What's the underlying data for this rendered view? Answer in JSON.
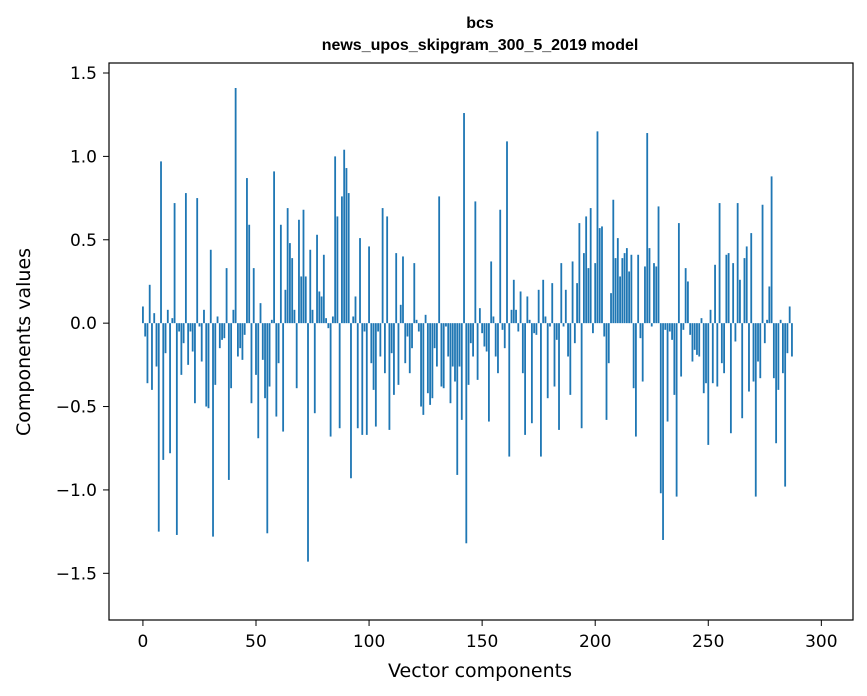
{
  "chart_data": {
    "type": "bar",
    "title": "bcs",
    "subtitle": "news_upos_skipgram_300_5_2019 model",
    "xlabel": "Vector components",
    "ylabel": "Components values",
    "xlim": [
      -15,
      314
    ],
    "ylim": [
      -1.78,
      1.56
    ],
    "xticks": [
      0,
      50,
      100,
      150,
      200,
      250,
      300
    ],
    "xtick_labels": [
      "0",
      "50",
      "100",
      "150",
      "200",
      "250",
      "300"
    ],
    "yticks": [
      -1.5,
      -1.0,
      -0.5,
      0.0,
      0.5,
      1.0,
      1.5
    ],
    "ytick_labels": [
      "−1.5",
      "−1.0",
      "−0.5",
      "0.0",
      "0.5",
      "1.0",
      "1.5"
    ],
    "grid": false,
    "bar_color": "#1f77b4",
    "values": [
      0.1,
      -0.08,
      -0.36,
      0.23,
      -0.4,
      0.06,
      -0.26,
      -1.25,
      0.97,
      -0.82,
      -0.18,
      0.08,
      -0.78,
      0.03,
      0.72,
      -1.27,
      -0.05,
      -0.31,
      -0.12,
      0.78,
      -0.25,
      -0.05,
      -0.17,
      -0.48,
      0.75,
      -0.02,
      -0.23,
      0.08,
      -0.5,
      -0.51,
      0.44,
      -1.28,
      -0.37,
      0.04,
      -0.15,
      -0.1,
      -0.09,
      0.33,
      -0.94,
      -0.39,
      0.08,
      1.41,
      -0.2,
      -0.15,
      -0.22,
      -0.07,
      0.87,
      0.59,
      -0.48,
      0.33,
      -0.31,
      -0.69,
      0.12,
      -0.22,
      -0.45,
      -1.26,
      -0.38,
      0.02,
      0.91,
      -0.56,
      -0.24,
      0.59,
      -0.65,
      0.2,
      0.69,
      0.48,
      0.39,
      0.08,
      -0.39,
      0.62,
      0.28,
      0.68,
      0.28,
      -1.43,
      0.44,
      0.08,
      -0.54,
      0.53,
      0.19,
      0.16,
      0.41,
      0.03,
      -0.03,
      -0.68,
      0.04,
      1.0,
      0.64,
      -0.63,
      0.76,
      1.04,
      0.93,
      0.78,
      -0.93,
      0.04,
      0.16,
      -0.63,
      0.51,
      -0.67,
      -0.05,
      -0.67,
      0.46,
      -0.24,
      -0.4,
      -0.62,
      -0.05,
      -0.2,
      0.69,
      -0.3,
      0.64,
      -0.64,
      -0.18,
      -0.43,
      0.42,
      -0.37,
      0.11,
      0.4,
      -0.24,
      -0.08,
      -0.3,
      -0.15,
      0.36,
      0.02,
      -0.05,
      -0.5,
      -0.55,
      0.05,
      -0.42,
      -0.49,
      -0.45,
      -0.15,
      -0.26,
      0.76,
      -0.38,
      -0.39,
      -0.02,
      -0.2,
      -0.48,
      -0.26,
      -0.35,
      -0.91,
      -0.26,
      -0.58,
      1.26,
      -1.32,
      -0.37,
      -0.12,
      -0.2,
      0.73,
      -0.34,
      0.09,
      -0.06,
      -0.14,
      -0.17,
      -0.59,
      0.37,
      0.04,
      -0.2,
      -0.3,
      0.68,
      -0.04,
      -0.15,
      1.09,
      -0.8,
      0.08,
      0.26,
      0.08,
      -0.05,
      0.19,
      -0.3,
      -0.67,
      0.16,
      0.02,
      -0.6,
      -0.06,
      -0.07,
      0.2,
      -0.8,
      0.26,
      0.04,
      -0.45,
      -0.02,
      0.24,
      -0.38,
      -0.1,
      -0.64,
      0.36,
      -0.02,
      0.2,
      -0.2,
      -0.43,
      0.37,
      -0.12,
      0.24,
      0.6,
      -0.63,
      0.42,
      0.64,
      0.33,
      0.69,
      -0.06,
      0.36,
      1.15,
      0.57,
      0.58,
      -0.08,
      -0.58,
      -0.24,
      0.18,
      0.74,
      0.39,
      0.51,
      0.28,
      0.39,
      0.42,
      0.45,
      0.31,
      0.41,
      -0.39,
      -0.68,
      0.41,
      -0.09,
      -0.35,
      0.34,
      1.14,
      0.45,
      -0.02,
      0.36,
      0.34,
      0.7,
      -1.02,
      -1.3,
      -0.04,
      -0.59,
      -0.05,
      -0.1,
      -0.43,
      -1.04,
      0.6,
      -0.32,
      -0.04,
      0.33,
      0.25,
      -0.07,
      -0.23,
      -0.16,
      -0.19,
      -0.2,
      0.03,
      -0.42,
      -0.36,
      -0.73,
      0.08,
      -0.36,
      0.35,
      -0.38,
      0.72,
      -0.24,
      -0.3,
      0.41,
      0.42,
      -0.66,
      0.36,
      -0.11,
      0.72,
      0.26,
      -0.57,
      0.39,
      0.46,
      -0.41,
      0.54,
      -0.35,
      -1.04,
      -0.23,
      -0.33,
      0.71,
      -0.12,
      0.02,
      0.22,
      0.88,
      -0.33,
      -0.72,
      -0.4,
      0.02,
      -0.3,
      -0.98,
      -0.18,
      0.1,
      -0.2
    ]
  }
}
